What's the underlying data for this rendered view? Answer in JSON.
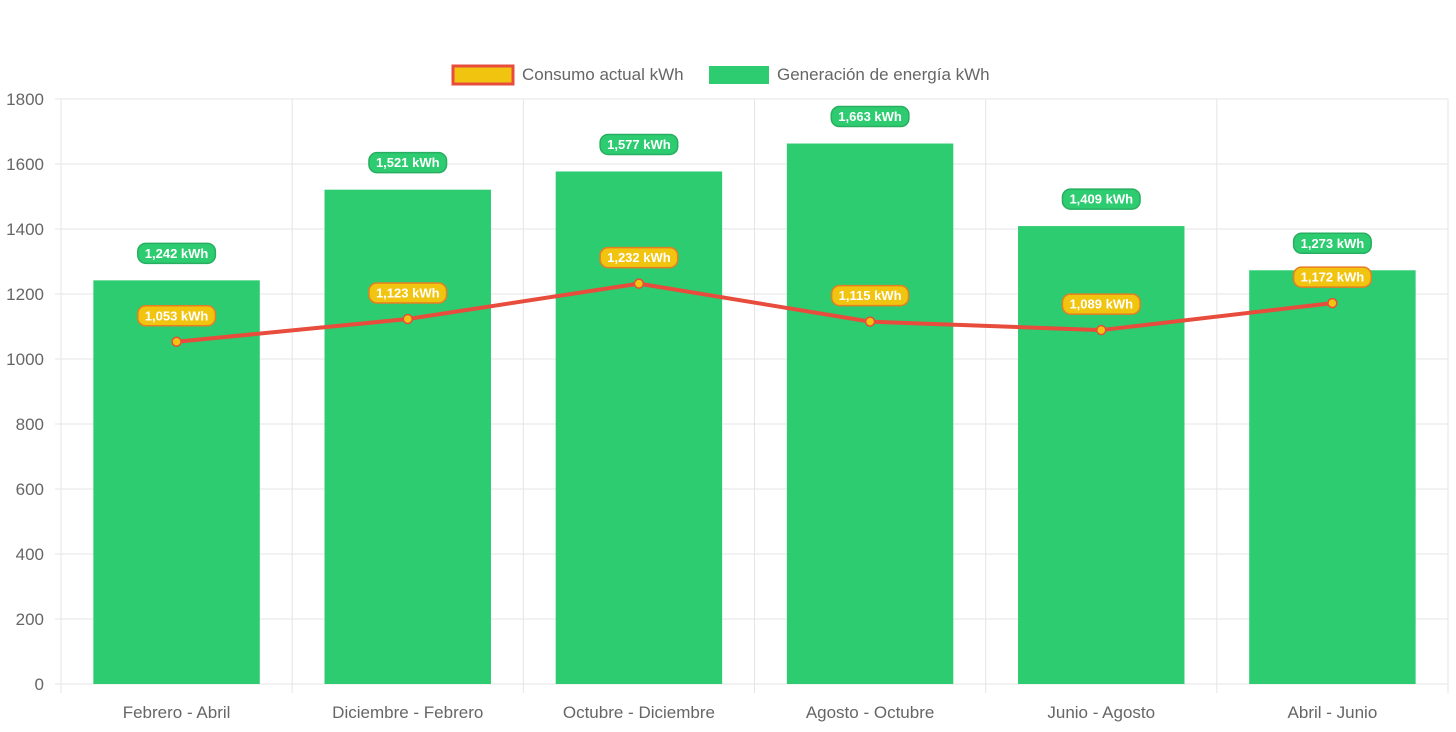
{
  "colors": {
    "generation_bar": "#2ecc71",
    "generation_badge_border": "#27ae60",
    "consumption_line": "#e74c3c",
    "consumption_point_fill": "#f1c40f",
    "consumption_badge_fill": "#f1c40f",
    "consumption_badge_border": "#e67e22",
    "grid": "#e5e5e5",
    "tick_text": "#666666"
  },
  "chart_data": {
    "type": "bar",
    "categories": [
      "Febrero - Abril",
      "Diciembre - Febrero",
      "Octubre - Diciembre",
      "Agosto - Octubre",
      "Junio - Agosto",
      "Abril - Junio"
    ],
    "series": [
      {
        "name": "Consumo actual kWh",
        "type": "line",
        "values": [
          1053,
          1123,
          1232,
          1115,
          1089,
          1172
        ],
        "labels": [
          "1,053 kWh",
          "1,123 kWh",
          "1,232 kWh",
          "1,115 kWh",
          "1,089 kWh",
          "1,172 kWh"
        ]
      },
      {
        "name": "Generación de energía kWh",
        "type": "bar",
        "values": [
          1242,
          1521,
          1577,
          1663,
          1409,
          1273
        ],
        "labels": [
          "1,242 kWh",
          "1,521 kWh",
          "1,577 kWh",
          "1,663 kWh",
          "1,409 kWh",
          "1,273 kWh"
        ]
      }
    ],
    "ylim": [
      0,
      1800
    ],
    "yticks": [
      "0",
      "200",
      "400",
      "600",
      "800",
      "1000",
      "1200",
      "1400",
      "1600",
      "1800"
    ],
    "legend_position": "top-center",
    "grid": true
  }
}
